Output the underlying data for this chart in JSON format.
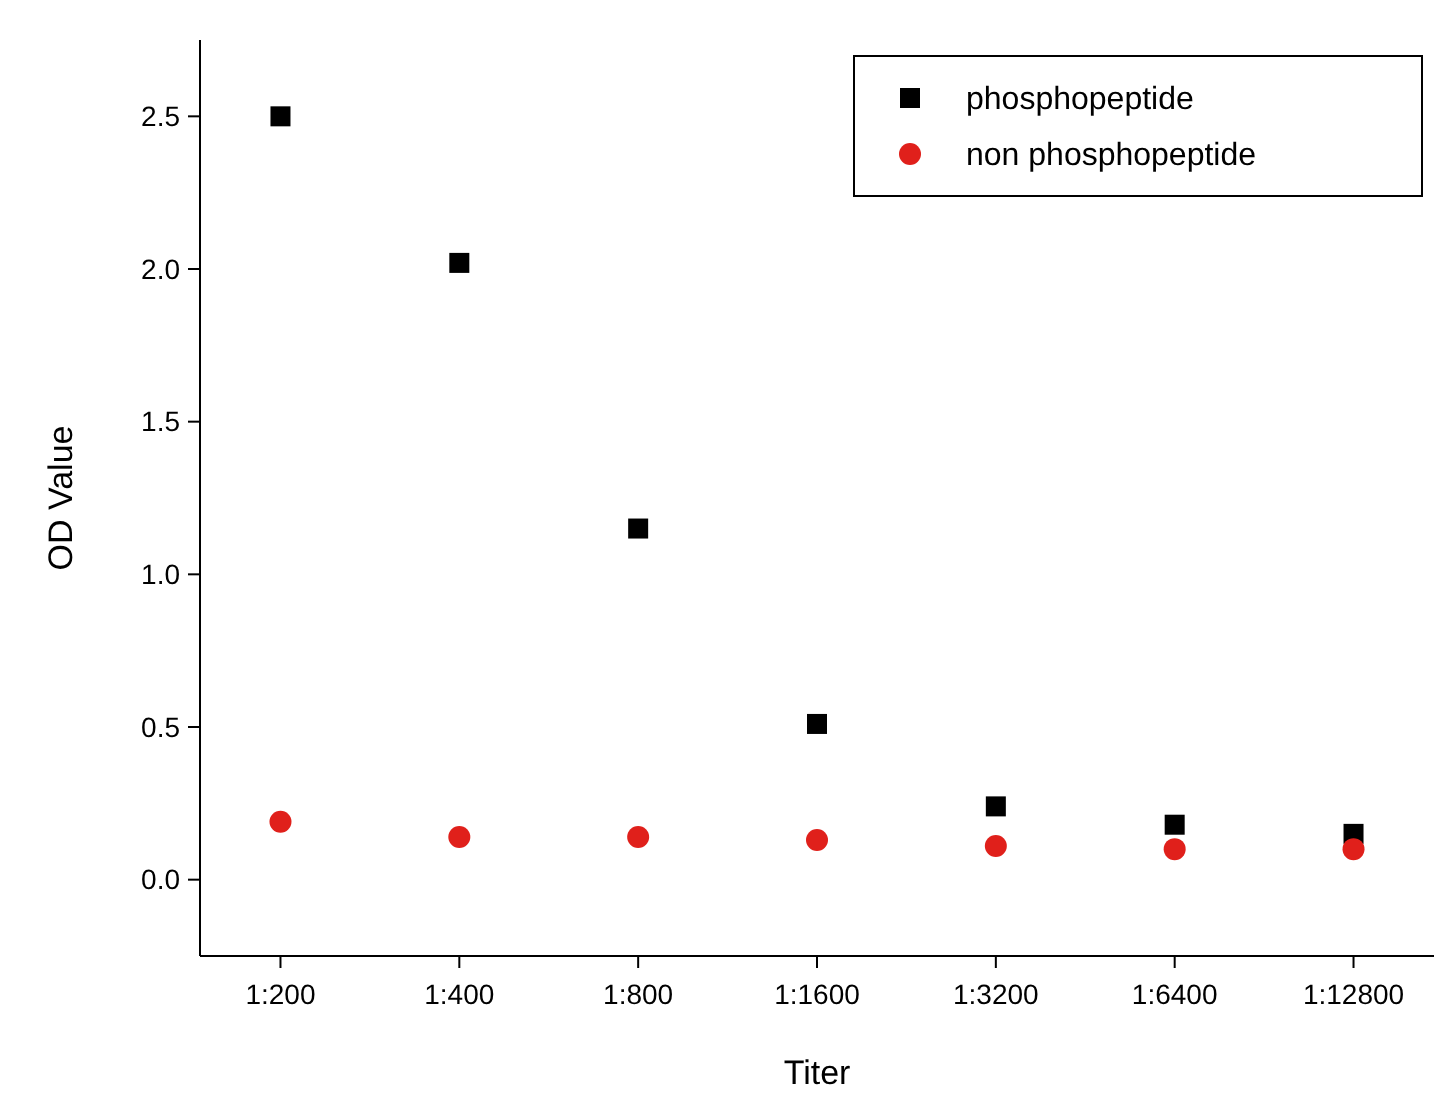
{
  "chart_data": {
    "type": "scatter",
    "xlabel": "Titer",
    "ylabel": "OD Value",
    "categories": [
      "1:200",
      "1:400",
      "1:800",
      "1:1600",
      "1:3200",
      "1:6400",
      "1:12800"
    ],
    "ylim": [
      -0.25,
      2.75
    ],
    "yticks": [
      {
        "value": 0,
        "label": "0.0"
      },
      {
        "value": 0.5,
        "label": "0.5"
      },
      {
        "value": 1,
        "label": "1.0"
      },
      {
        "value": 1.5,
        "label": "1.5"
      },
      {
        "value": 2,
        "label": "2.0"
      },
      {
        "value": 2.5,
        "label": "2.5"
      }
    ],
    "series": [
      {
        "name": "phosphopeptide",
        "color": "#000000",
        "marker": "square",
        "values": [
          2.5,
          2.02,
          1.15,
          0.51,
          0.24,
          0.18,
          0.15
        ]
      },
      {
        "name": "non phosphopeptide",
        "color": "#e0201b",
        "marker": "circle",
        "values": [
          0.19,
          0.14,
          0.14,
          0.13,
          0.11,
          0.1,
          0.1
        ]
      }
    ],
    "legend": "top right",
    "grid": false
  }
}
